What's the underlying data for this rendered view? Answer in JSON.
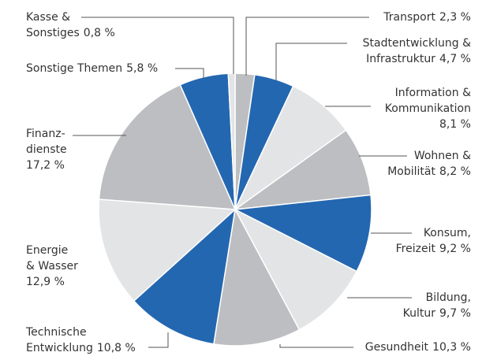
{
  "chart_data": {
    "type": "pie",
    "categories": [
      "Transport",
      "Stadtentwicklung &\nInfrastruktur",
      "Information &\nKommunikation",
      "Wohnen &\nMobilität",
      "Konsum,\nFreizeit",
      "Bildung,\nKultur",
      "Gesundheit",
      "Technische\nEntwicklung",
      "Energie\n& Wasser",
      "Finanz-\ndienste",
      "Sonstige Themen",
      "Kasse &\nSonstiges"
    ],
    "values": [
      2.3,
      4.7,
      8.1,
      8.2,
      9.2,
      9.7,
      10.3,
      10.8,
      12.9,
      17.2,
      5.8,
      0.8
    ],
    "value_labels": [
      "2,3 %",
      "4,7 %",
      "8,1 %",
      "8,2 %",
      "9,2 %",
      "9,7 %",
      "10,3 %",
      "10,8 %",
      "12,9 %",
      "17,2 %",
      "5,8 %",
      "0,8 %"
    ],
    "colors": [
      "#bdbec1",
      "#2467b1",
      "#e3e4e6",
      "#bdbec1",
      "#2467b1",
      "#e3e4e6",
      "#bdbec1",
      "#2467b1",
      "#e3e4e6",
      "#bdbec1",
      "#2467b1",
      "#e3e4e6"
    ]
  }
}
